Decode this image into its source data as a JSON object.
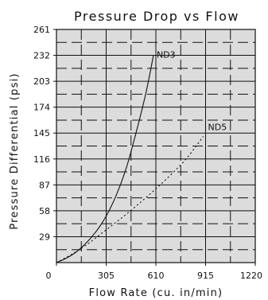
{
  "chart_data": {
    "type": "line",
    "title": "Pressure Drop vs Flow",
    "xlabel": "Flow Rate (cu. in/min)",
    "ylabel": "Pressure Differential (psi)",
    "xlim": [
      0,
      1220
    ],
    "ylim": [
      0,
      261
    ],
    "x_ticks": [
      "0",
      "305",
      "610",
      "915",
      "1220"
    ],
    "x_tick_values": [
      0,
      305,
      610,
      915,
      1220
    ],
    "y_ticks": [
      "29",
      "58",
      "87",
      "116",
      "145",
      "174",
      "203",
      "232",
      "261"
    ],
    "y_tick_values": [
      29,
      58,
      87,
      116,
      145,
      174,
      203,
      232,
      261
    ],
    "grid": true,
    "series": [
      {
        "name": "ND3",
        "style": "solid",
        "x": [
          0,
          61,
          122,
          183,
          244,
          305,
          366,
          427,
          488,
          549,
          595
        ],
        "y": [
          0,
          5,
          12,
          22,
          35,
          52,
          75,
          105,
          145,
          190,
          232
        ]
      },
      {
        "name": "ND5",
        "style": "dotted",
        "x": [
          0,
          100,
          200,
          300,
          400,
          500,
          600,
          700,
          800,
          900
        ],
        "y": [
          0,
          10,
          22,
          36,
          50,
          65,
          81,
          98,
          117,
          141
        ]
      }
    ],
    "annotations": [
      {
        "text": "ND3",
        "x": 600,
        "y": 231
      },
      {
        "text": "ND5",
        "x": 915,
        "y": 150
      }
    ]
  }
}
